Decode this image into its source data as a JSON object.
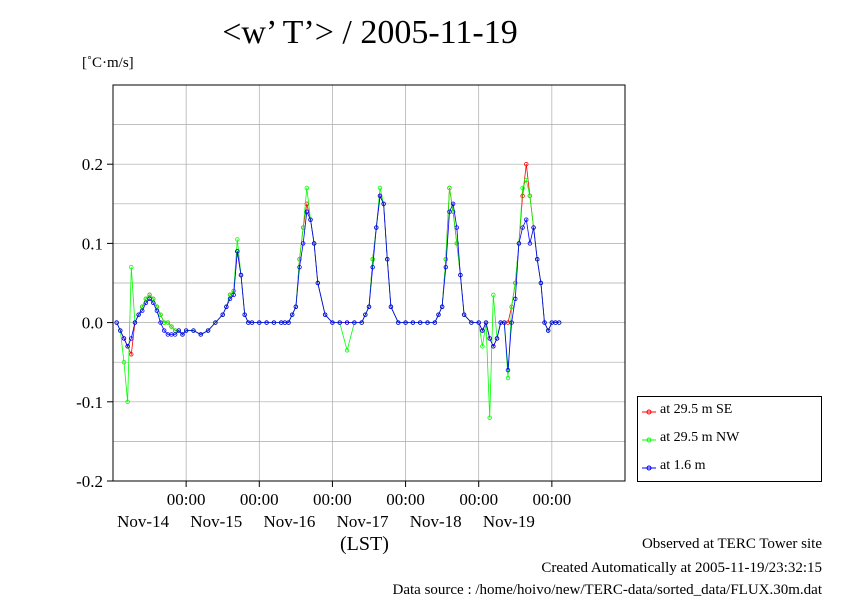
{
  "title": "<w’ T’> / 2005-11-19",
  "y_unit": "[˚C·m/s]",
  "x_unit": "(LST)",
  "footer": {
    "line1": "Observed at TERC Tower site",
    "line2": "Created Automatically at 2005-11-19/23:32:15",
    "line3": "Data source : /home/hoivo/new/TERC-data/sorted_data/FLUX.30m.dat"
  },
  "chart_data": {
    "type": "line",
    "title": "<w’ T’> / 2005-11-19",
    "ylabel": "[˚C·m/s]",
    "xlabel": "(LST)",
    "ylim": [
      -0.2,
      0.3
    ],
    "xlim_days": [
      13.0,
      20.0
    ],
    "y_ticks": [
      {
        "value": 0.2,
        "label": "0.2"
      },
      {
        "value": 0.1,
        "label": "0.1"
      },
      {
        "value": 0.0,
        "label": "0.0"
      },
      {
        "value": -0.1,
        "label": "-0.1"
      },
      {
        "value": -0.2,
        "label": "-0.2"
      }
    ],
    "x_ticks": [
      {
        "day": 14,
        "time_label": "00:00",
        "date_label": "Nov-14"
      },
      {
        "day": 15,
        "time_label": "00:00",
        "date_label": "Nov-15"
      },
      {
        "day": 16,
        "time_label": "00:00",
        "date_label": "Nov-16"
      },
      {
        "day": 17,
        "time_label": "00:00",
        "date_label": "Nov-17"
      },
      {
        "day": 18,
        "time_label": "00:00",
        "date_label": "Nov-18"
      },
      {
        "day": 19,
        "time_label": "00:00",
        "date_label": "Nov-19"
      }
    ],
    "grid": true,
    "legend_position": "bottom-right, outside plot",
    "series": [
      {
        "name": "at 29.5 m SE",
        "color": "#ff0000",
        "x": [
          13.05,
          13.1,
          13.15,
          13.2,
          13.25,
          13.3,
          13.35,
          13.4,
          13.45,
          13.5,
          13.55,
          13.6,
          13.65,
          13.7,
          13.75,
          13.8,
          13.85,
          13.9,
          13.95,
          14.0,
          14.1,
          14.2,
          14.3,
          14.4,
          14.5,
          14.55,
          14.6,
          14.65,
          14.7,
          14.75,
          14.8,
          14.85,
          14.9,
          15.0,
          15.1,
          15.2,
          15.3,
          15.35,
          15.4,
          15.45,
          15.5,
          15.55,
          15.6,
          15.65,
          15.7,
          15.75,
          15.8,
          15.9,
          16.0,
          16.1,
          16.2,
          16.3,
          16.4,
          16.45,
          16.5,
          16.55,
          16.6,
          16.65,
          16.7,
          16.75,
          16.8,
          16.9,
          17.0,
          17.1,
          17.2,
          17.3,
          17.4,
          17.45,
          17.5,
          17.55,
          17.6,
          17.65,
          17.7,
          17.75,
          17.8,
          17.9,
          18.0,
          18.05,
          18.1,
          18.15,
          18.2,
          18.25,
          18.3,
          18.35,
          18.4,
          18.45,
          18.5,
          18.55,
          18.6,
          18.65,
          18.7,
          18.75,
          18.8,
          18.85,
          18.9,
          18.95,
          19.0,
          19.05,
          19.1
        ],
        "y": [
          0.0,
          -0.01,
          -0.02,
          -0.03,
          -0.04,
          0.0,
          0.01,
          0.02,
          0.03,
          0.035,
          0.03,
          0.02,
          0.01,
          0.0,
          0.0,
          -0.005,
          -0.01,
          -0.01,
          -0.015,
          -0.01,
          -0.01,
          -0.015,
          -0.01,
          0.0,
          0.01,
          0.02,
          0.035,
          0.04,
          0.09,
          0.06,
          0.01,
          0.0,
          0.0,
          0.0,
          0.0,
          0.0,
          0.0,
          0.0,
          0.0,
          0.01,
          0.02,
          0.08,
          0.12,
          0.15,
          0.13,
          0.1,
          0.05,
          0.01,
          0.0,
          0.0,
          0.0,
          0.0,
          0.0,
          0.01,
          0.02,
          0.08,
          0.12,
          0.16,
          0.15,
          0.08,
          0.02,
          0.0,
          0.0,
          0.0,
          0.0,
          0.0,
          0.0,
          0.01,
          0.02,
          0.08,
          0.17,
          0.14,
          0.1,
          0.06,
          0.01,
          0.0,
          0.0,
          -0.01,
          0.0,
          -0.02,
          -0.03,
          -0.02,
          0.0,
          0.0,
          0.0,
          0.02,
          0.05,
          0.1,
          0.16,
          0.2,
          0.16,
          0.12,
          0.08,
          0.05,
          0.0,
          -0.01,
          0.0,
          0.0,
          0.0
        ],
        "values": [
          0.0,
          -0.01,
          -0.02,
          -0.03,
          -0.04,
          0.0,
          0.01,
          0.02,
          0.03,
          0.035,
          0.03,
          0.02,
          0.01,
          0.0,
          0.0,
          -0.005,
          -0.01,
          -0.01,
          -0.015,
          -0.01,
          -0.01,
          -0.015,
          -0.01,
          0.0,
          0.01,
          0.02,
          0.035,
          0.04,
          0.09,
          0.06,
          0.01,
          0.0,
          0.0,
          0.0,
          0.0,
          0.0,
          0.0,
          0.0,
          0.0,
          0.01,
          0.02,
          0.08,
          0.12,
          0.15,
          0.13,
          0.1,
          0.05,
          0.01,
          0.0,
          0.0,
          0.0,
          0.0,
          0.0,
          0.01,
          0.02,
          0.08,
          0.12,
          0.16,
          0.15,
          0.08,
          0.02,
          0.0,
          0.0,
          0.0,
          0.0,
          0.0,
          0.0,
          0.01,
          0.02,
          0.08,
          0.17,
          0.14,
          0.1,
          0.06,
          0.01,
          0.0,
          0.0,
          -0.01,
          0.0,
          -0.02,
          -0.03,
          -0.02,
          0.0,
          0.0,
          0.0,
          0.02,
          0.05,
          0.1,
          0.16,
          0.2,
          0.16,
          0.12,
          0.08,
          0.05,
          0.0,
          -0.01,
          0.0,
          0.0,
          0.0
        ]
      },
      {
        "name": "at 29.5 m NW",
        "color": "#00ff00",
        "x": [
          13.05,
          13.1,
          13.15,
          13.2,
          13.25,
          13.3,
          13.35,
          13.4,
          13.45,
          13.5,
          13.55,
          13.6,
          13.65,
          13.7,
          13.75,
          13.8,
          13.85,
          13.9,
          13.95,
          14.0,
          14.1,
          14.2,
          14.3,
          14.4,
          14.5,
          14.55,
          14.6,
          14.65,
          14.7,
          14.75,
          14.8,
          14.85,
          14.9,
          15.0,
          15.1,
          15.2,
          15.3,
          15.35,
          15.4,
          15.45,
          15.5,
          15.55,
          15.6,
          15.65,
          15.7,
          15.75,
          15.8,
          15.9,
          16.0,
          16.1,
          16.2,
          16.3,
          16.4,
          16.45,
          16.5,
          16.55,
          16.6,
          16.65,
          16.7,
          16.75,
          16.8,
          16.9,
          17.0,
          17.1,
          17.2,
          17.3,
          17.4,
          17.45,
          17.5,
          17.55,
          17.6,
          17.65,
          17.7,
          17.75,
          17.8,
          17.9,
          18.0,
          18.05,
          18.1,
          18.15,
          18.2,
          18.25,
          18.3,
          18.35,
          18.4,
          18.45,
          18.5,
          18.55,
          18.6,
          18.65,
          18.7,
          18.75,
          18.8,
          18.85,
          18.9,
          18.95,
          19.0,
          19.05,
          19.1
        ],
        "y": [
          0.0,
          -0.01,
          -0.05,
          -0.1,
          0.07,
          0.0,
          0.01,
          0.02,
          0.03,
          0.035,
          0.03,
          0.02,
          0.01,
          0.0,
          0.0,
          -0.005,
          -0.01,
          -0.01,
          -0.015,
          -0.01,
          -0.01,
          -0.015,
          -0.01,
          0.0,
          0.01,
          0.02,
          0.035,
          0.04,
          0.105,
          0.06,
          0.01,
          0.0,
          0.0,
          0.0,
          0.0,
          0.0,
          0.0,
          0.0,
          0.0,
          0.01,
          0.02,
          0.08,
          0.12,
          0.17,
          0.13,
          0.1,
          0.05,
          0.01,
          0.0,
          0.0,
          -0.035,
          0.0,
          0.0,
          0.01,
          0.02,
          0.08,
          0.12,
          0.17,
          0.15,
          0.08,
          0.02,
          0.0,
          0.0,
          0.0,
          0.0,
          0.0,
          0.0,
          0.01,
          0.02,
          0.08,
          0.17,
          0.14,
          0.1,
          0.06,
          0.01,
          0.0,
          0.0,
          -0.03,
          0.0,
          -0.12,
          0.035,
          -0.02,
          0.0,
          0.0,
          -0.07,
          0.02,
          0.05,
          0.1,
          0.17,
          0.18,
          0.16,
          0.12,
          0.08,
          0.05,
          0.0,
          -0.01,
          0.0,
          0.0,
          0.0
        ],
        "values": [
          0.0,
          -0.01,
          -0.05,
          -0.1,
          0.07,
          0.0,
          0.01,
          0.02,
          0.03,
          0.035,
          0.03,
          0.02,
          0.01,
          0.0,
          0.0,
          -0.005,
          -0.01,
          -0.01,
          -0.015,
          -0.01,
          -0.01,
          -0.015,
          -0.01,
          0.0,
          0.01,
          0.02,
          0.035,
          0.04,
          0.105,
          0.06,
          0.01,
          0.0,
          0.0,
          0.0,
          0.0,
          0.0,
          0.0,
          0.0,
          0.0,
          0.01,
          0.02,
          0.08,
          0.12,
          0.17,
          0.13,
          0.1,
          0.05,
          0.01,
          0.0,
          0.0,
          -0.035,
          0.0,
          0.0,
          0.01,
          0.02,
          0.08,
          0.12,
          0.17,
          0.15,
          0.08,
          0.02,
          0.0,
          0.0,
          0.0,
          0.0,
          0.0,
          0.0,
          0.01,
          0.02,
          0.08,
          0.17,
          0.14,
          0.1,
          0.06,
          0.01,
          0.0,
          0.0,
          -0.03,
          0.0,
          -0.12,
          0.035,
          -0.02,
          0.0,
          0.0,
          -0.07,
          0.02,
          0.05,
          0.1,
          0.17,
          0.18,
          0.16,
          0.12,
          0.08,
          0.05,
          0.0,
          -0.01,
          0.0,
          0.0,
          0.0
        ]
      },
      {
        "name": "at 1.6 m",
        "color": "#0000ff",
        "x": [
          13.05,
          13.1,
          13.15,
          13.2,
          13.25,
          13.3,
          13.35,
          13.4,
          13.45,
          13.5,
          13.55,
          13.6,
          13.65,
          13.7,
          13.75,
          13.8,
          13.85,
          13.9,
          13.95,
          14.0,
          14.1,
          14.2,
          14.3,
          14.4,
          14.5,
          14.55,
          14.6,
          14.65,
          14.7,
          14.75,
          14.8,
          14.85,
          14.9,
          15.0,
          15.1,
          15.2,
          15.3,
          15.35,
          15.4,
          15.45,
          15.5,
          15.55,
          15.6,
          15.65,
          15.7,
          15.75,
          15.8,
          15.9,
          16.0,
          16.1,
          16.2,
          16.3,
          16.4,
          16.45,
          16.5,
          16.55,
          16.6,
          16.65,
          16.7,
          16.75,
          16.8,
          16.9,
          17.0,
          17.1,
          17.2,
          17.3,
          17.4,
          17.45,
          17.5,
          17.55,
          17.6,
          17.65,
          17.7,
          17.75,
          17.8,
          17.9,
          18.0,
          18.05,
          18.1,
          18.15,
          18.2,
          18.25,
          18.3,
          18.35,
          18.4,
          18.45,
          18.5,
          18.55,
          18.6,
          18.65,
          18.7,
          18.75,
          18.8,
          18.85,
          18.9,
          18.95,
          19.0,
          19.05,
          19.1
        ],
        "y": [
          0.0,
          -0.01,
          -0.02,
          -0.03,
          -0.02,
          0.0,
          0.01,
          0.015,
          0.025,
          0.03,
          0.025,
          0.015,
          0.0,
          -0.01,
          -0.015,
          -0.015,
          -0.015,
          -0.01,
          -0.015,
          -0.01,
          -0.01,
          -0.015,
          -0.01,
          0.0,
          0.01,
          0.02,
          0.03,
          0.035,
          0.09,
          0.06,
          0.01,
          0.0,
          0.0,
          0.0,
          0.0,
          0.0,
          0.0,
          0.0,
          0.0,
          0.01,
          0.02,
          0.07,
          0.1,
          0.14,
          0.13,
          0.1,
          0.05,
          0.01,
          0.0,
          0.0,
          0.0,
          0.0,
          0.0,
          0.01,
          0.02,
          0.07,
          0.12,
          0.16,
          0.15,
          0.08,
          0.02,
          0.0,
          0.0,
          0.0,
          0.0,
          0.0,
          0.0,
          0.01,
          0.02,
          0.07,
          0.14,
          0.15,
          0.12,
          0.06,
          0.01,
          0.0,
          0.0,
          -0.01,
          0.0,
          -0.02,
          -0.03,
          -0.02,
          0.0,
          0.0,
          -0.06,
          0.0,
          0.03,
          0.1,
          0.12,
          0.13,
          0.1,
          0.12,
          0.08,
          0.05,
          0.0,
          -0.01,
          0.0,
          0.0,
          0.0
        ],
        "values": [
          0.0,
          -0.01,
          -0.02,
          -0.03,
          -0.02,
          0.0,
          0.01,
          0.015,
          0.025,
          0.03,
          0.025,
          0.015,
          0.0,
          -0.01,
          -0.015,
          -0.015,
          -0.015,
          -0.01,
          -0.015,
          -0.01,
          -0.01,
          -0.015,
          -0.01,
          0.0,
          0.01,
          0.02,
          0.03,
          0.035,
          0.09,
          0.06,
          0.01,
          0.0,
          0.0,
          0.0,
          0.0,
          0.0,
          0.0,
          0.0,
          0.0,
          0.01,
          0.02,
          0.07,
          0.1,
          0.14,
          0.13,
          0.1,
          0.05,
          0.01,
          0.0,
          0.0,
          0.0,
          0.0,
          0.0,
          0.01,
          0.02,
          0.07,
          0.12,
          0.16,
          0.15,
          0.08,
          0.02,
          0.0,
          0.0,
          0.0,
          0.0,
          0.0,
          0.0,
          0.01,
          0.02,
          0.07,
          0.14,
          0.15,
          0.12,
          0.06,
          0.01,
          0.0,
          0.0,
          -0.01,
          0.0,
          -0.02,
          -0.03,
          -0.02,
          0.0,
          0.0,
          -0.06,
          0.0,
          0.03,
          0.1,
          0.12,
          0.13,
          0.1,
          0.12,
          0.08,
          0.05,
          0.0,
          -0.01,
          0.0,
          0.0,
          0.0
        ]
      }
    ]
  }
}
